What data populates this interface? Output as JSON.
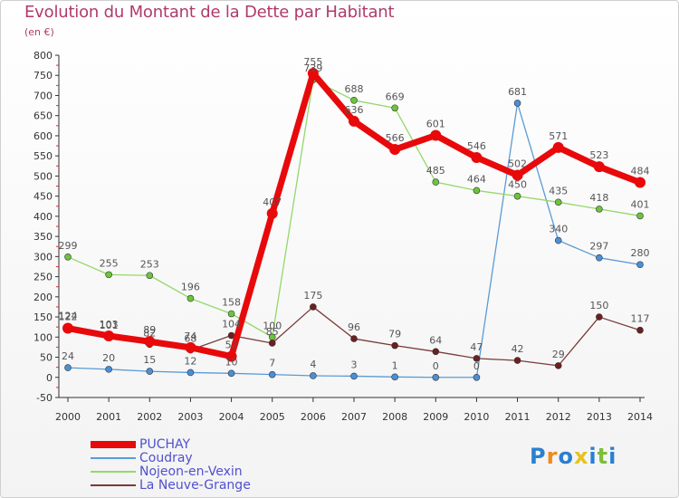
{
  "title": "Evolution du Montant de la Dette par Habitant",
  "unit": "(en €)",
  "logo": {
    "letters": [
      "P",
      "r",
      "o",
      "x",
      "i",
      "t",
      "i"
    ],
    "colors": [
      "#2a7fd0",
      "#f08a1c",
      "#2a7fd0",
      "#e8c21a",
      "#2a7fd0",
      "#7bbf3a",
      "#2a7fd0"
    ]
  },
  "chart_data": {
    "type": "line",
    "title": "Evolution du Montant de la Dette par Habitant",
    "ylabel": "(en €)",
    "xlabel": "",
    "ylim": [
      -50,
      800
    ],
    "yticks": [
      -50,
      0,
      50,
      100,
      150,
      200,
      250,
      300,
      350,
      400,
      450,
      500,
      550,
      600,
      650,
      700,
      750,
      800
    ],
    "categories": [
      "2000",
      "2001",
      "2002",
      "2003",
      "2004",
      "2005",
      "2006",
      "2007",
      "2008",
      "2009",
      "2010",
      "2011",
      "2012",
      "2013",
      "2014"
    ],
    "grid": false,
    "legend": "bottom-left",
    "series": [
      {
        "name": "PUCHAY",
        "color": "#e8090b",
        "marker": "#e8090b",
        "width": 7,
        "values": [
          122,
          103,
          89,
          74,
          52,
          407,
          755,
          636,
          566,
          601,
          546,
          502,
          571,
          523,
          484
        ],
        "labels": [
          "122",
          "103",
          "89",
          "74",
          "52",
          "407",
          "755",
          "636",
          "566",
          "601",
          "546",
          "502",
          "571",
          "523",
          "484"
        ]
      },
      {
        "name": "Coudray",
        "color": "#5b9bd5",
        "marker": "#4a8fd8",
        "width": 1.3,
        "values": [
          24,
          20,
          15,
          12,
          10,
          7,
          4,
          3,
          1,
          0,
          0,
          681,
          340,
          297,
          280
        ],
        "labels": [
          "24",
          "20",
          "15",
          "12",
          "10",
          "7",
          "4",
          "3",
          "1",
          "0",
          "0",
          "681",
          "340",
          "297",
          "280"
        ]
      },
      {
        "name": "Nojeon-en-Vexin",
        "color": "#93d86a",
        "marker": "#6cc43c",
        "width": 1.3,
        "values": [
          299,
          255,
          253,
          196,
          158,
          100,
          739,
          688,
          669,
          485,
          464,
          450,
          435,
          418,
          401
        ],
        "labels": [
          "299",
          "255",
          "253",
          "196",
          "158",
          "100",
          "739",
          "688",
          "669",
          "485",
          "464",
          "450",
          "435",
          "418",
          "401"
        ]
      },
      {
        "name": "La Neuve-Grange",
        "color": "#7a3a3a",
        "marker": "#6b2020",
        "width": 1.3,
        "values": [
          124,
          101,
          82,
          68,
          104,
          85,
          175,
          96,
          79,
          64,
          47,
          42,
          29,
          150,
          117
        ],
        "labels": [
          "124",
          "101",
          "82",
          "68",
          "104",
          "85",
          "175",
          "96",
          "79",
          "64",
          "47",
          "42",
          "29",
          "150",
          "117"
        ]
      }
    ]
  }
}
